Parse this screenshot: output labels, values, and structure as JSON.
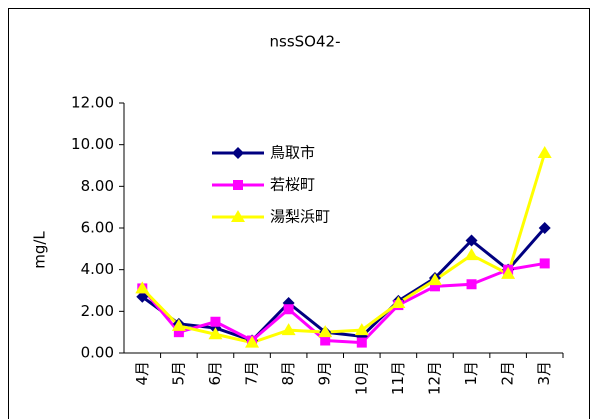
{
  "chart_data": {
    "type": "line",
    "title": "nssSO42-",
    "y_label": "mg/L",
    "categories": [
      "4月",
      "5月",
      "6月",
      "7月",
      "8月",
      "9月",
      "10月",
      "11月",
      "12月",
      "1月",
      "2月",
      "3月"
    ],
    "series": [
      {
        "name": "鳥取市",
        "color": "#000080",
        "marker": "diamond",
        "values": [
          2.7,
          1.4,
          1.2,
          0.6,
          2.4,
          1.0,
          0.8,
          2.5,
          3.6,
          5.4,
          4.0,
          6.0
        ]
      },
      {
        "name": "若桜町",
        "color": "#ff00ff",
        "marker": "square",
        "values": [
          3.1,
          1.0,
          1.5,
          0.6,
          2.1,
          0.6,
          0.5,
          2.3,
          3.2,
          3.3,
          4.0,
          4.3
        ]
      },
      {
        "name": "湯梨浜町",
        "color": "#ffff00",
        "marker": "triangle",
        "values": [
          3.1,
          1.3,
          0.9,
          0.5,
          1.1,
          1.0,
          1.1,
          2.4,
          3.5,
          4.7,
          3.8,
          9.6
        ]
      }
    ],
    "ylim": [
      0,
      12
    ],
    "yticks": [
      {
        "value": 0,
        "label": "0.00"
      },
      {
        "value": 2,
        "label": "2.00"
      },
      {
        "value": 4,
        "label": "4.00"
      },
      {
        "value": 6,
        "label": "6.00"
      },
      {
        "value": 8,
        "label": "8.00"
      },
      {
        "value": 10,
        "label": "10.00"
      },
      {
        "value": 12,
        "label": "12.00"
      }
    ],
    "grid": false
  }
}
